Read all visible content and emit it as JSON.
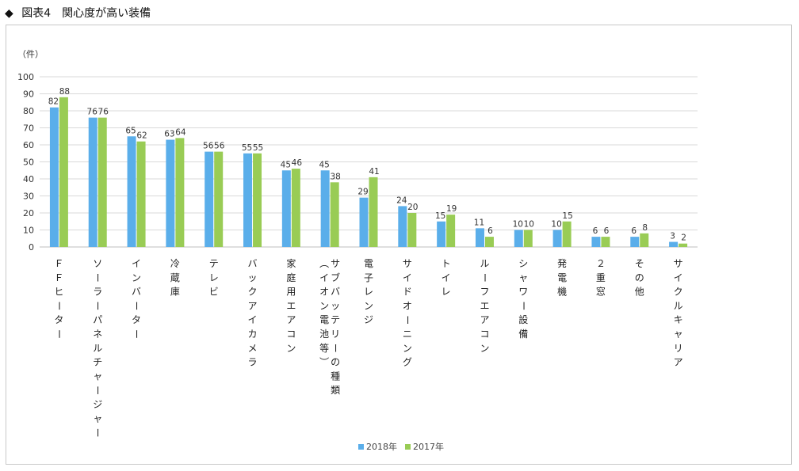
{
  "page": {
    "title_marker": "◆",
    "title": "図表4　関心度が高い装備"
  },
  "chart_data": {
    "type": "bar",
    "title": "図表4　関心度が高い装備",
    "ylabel": "（件）",
    "xlabel": "",
    "ylim": [
      0,
      100
    ],
    "yticks": [
      0,
      10,
      20,
      30,
      40,
      50,
      60,
      70,
      80,
      90,
      100
    ],
    "grid": true,
    "legend_position": "bottom",
    "categories": [
      "ＦＦヒーター",
      "ソーラーパネルチャージャー",
      "インバーター",
      "冷蔵庫",
      "テレビ",
      "バックアイカメラ",
      "家庭用エアコン",
      "サブバッテリーの種類（イオン電池等）",
      "電子レンジ",
      "サイドオーニング",
      "トイレ",
      "ルーフエアコン",
      "シャワー設備",
      "発電機",
      "２重窓",
      "その他",
      "サイクルキャリア"
    ],
    "category_columns": [
      [
        "ＦＦヒーター"
      ],
      [
        "ソーラーパネルチャージャー"
      ],
      [
        "インバーター"
      ],
      [
        "冷蔵庫"
      ],
      [
        "テレビ"
      ],
      [
        "バックアイカメラ"
      ],
      [
        "家庭用エアコン"
      ],
      [
        "サブバッテリーの種類",
        "（イオン電池等）"
      ],
      [
        "電子レンジ"
      ],
      [
        "サイドオーニング"
      ],
      [
        "トイレ"
      ],
      [
        "ルーフエアコン"
      ],
      [
        "シャワー設備"
      ],
      [
        "発電機"
      ],
      [
        "２重窓"
      ],
      [
        "その他"
      ],
      [
        "サイクルキャリア"
      ]
    ],
    "series": [
      {
        "name": "2018年",
        "color": "#5aaeea",
        "values": [
          82,
          76,
          65,
          63,
          56,
          55,
          45,
          45,
          29,
          24,
          15,
          11,
          10,
          10,
          6,
          6,
          3
        ]
      },
      {
        "name": "2017年",
        "color": "#99cc55",
        "values": [
          88,
          76,
          62,
          64,
          56,
          55,
          46,
          38,
          41,
          20,
          19,
          6,
          10,
          15,
          6,
          8,
          2
        ]
      }
    ]
  }
}
